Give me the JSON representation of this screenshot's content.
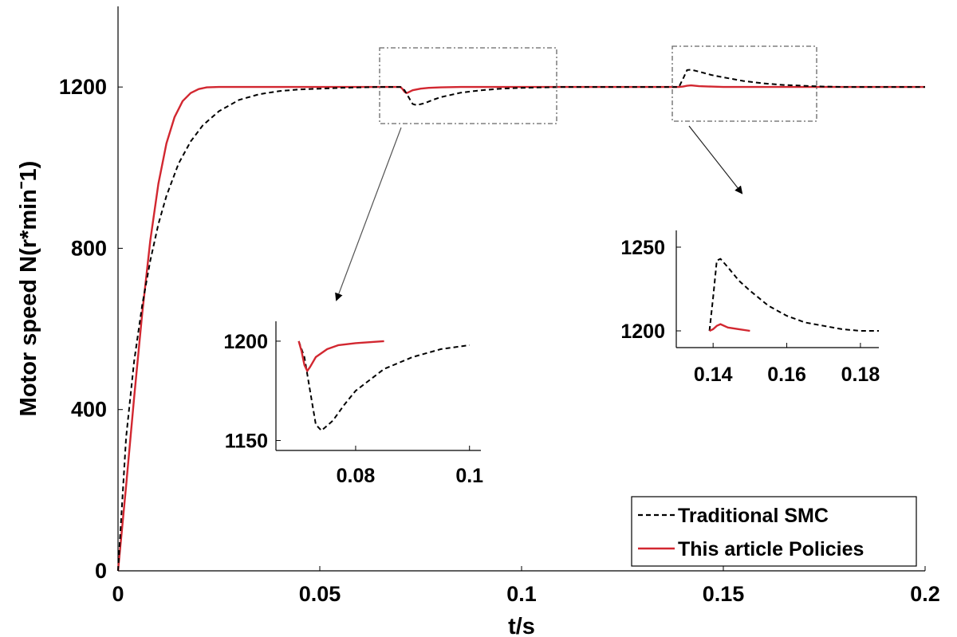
{
  "chart_data": [
    {
      "type": "line",
      "xlabel": "t/s",
      "ylabel": "Motor speed N(r*minˉ1)",
      "xlim": [
        0,
        0.2
      ],
      "ylim": [
        0,
        1400
      ],
      "xticks": [
        "0",
        "0.05",
        "0.1",
        "0.15",
        "0.2"
      ],
      "yticks": [
        "0",
        "400",
        "800",
        "1200"
      ],
      "grid": false,
      "legend": {
        "position": "bottom-right"
      },
      "series": [
        {
          "name": "Traditional SMC",
          "style": "dashed",
          "color": "#000000",
          "x": [
            0,
            0.002,
            0.004,
            0.006,
            0.008,
            0.01,
            0.012,
            0.015,
            0.018,
            0.021,
            0.025,
            0.03,
            0.035,
            0.04,
            0.045,
            0.05,
            0.055,
            0.06,
            0.065,
            0.07,
            0.071,
            0.072,
            0.073,
            0.074,
            0.076,
            0.078,
            0.08,
            0.085,
            0.09,
            0.095,
            0.1,
            0.11,
            0.139,
            0.14,
            0.141,
            0.142,
            0.144,
            0.147,
            0.15,
            0.155,
            0.16,
            0.165,
            0.17,
            0.175,
            0.18,
            0.185,
            0.2
          ],
          "y": [
            0,
            330,
            520,
            660,
            770,
            860,
            930,
            1010,
            1065,
            1105,
            1140,
            1168,
            1182,
            1190,
            1194,
            1196,
            1198,
            1199,
            1200,
            1200,
            1192,
            1175,
            1158,
            1155,
            1160,
            1168,
            1175,
            1186,
            1192,
            1196,
            1198,
            1200,
            1200,
            1220,
            1242,
            1243,
            1238,
            1230,
            1224,
            1215,
            1209,
            1205,
            1203,
            1201,
            1200,
            1200,
            1200
          ]
        },
        {
          "name": "This article Policies",
          "style": "solid",
          "color": "#d22730",
          "x": [
            0,
            0.002,
            0.004,
            0.006,
            0.008,
            0.01,
            0.012,
            0.014,
            0.016,
            0.018,
            0.02,
            0.022,
            0.025,
            0.03,
            0.07,
            0.0705,
            0.071,
            0.0715,
            0.072,
            0.073,
            0.075,
            0.077,
            0.08,
            0.085,
            0.139,
            0.14,
            0.141,
            0.142,
            0.144,
            0.147,
            0.15,
            0.2
          ],
          "y": [
            0,
            210,
            430,
            640,
            820,
            960,
            1060,
            1125,
            1165,
            1185,
            1195,
            1199,
            1200,
            1200,
            1200,
            1195,
            1188,
            1185,
            1187,
            1192,
            1196,
            1198,
            1199,
            1200,
            1200,
            1201,
            1203,
            1204,
            1202,
            1201,
            1200,
            1200
          ]
        }
      ]
    },
    {
      "type": "line",
      "inset": "zoom on first disturbance",
      "xlim": [
        0.066,
        0.102
      ],
      "ylim": [
        1145,
        1210
      ],
      "xticks": [
        "0.08",
        "0.1"
      ],
      "yticks": [
        "1150",
        "1200"
      ]
    },
    {
      "type": "line",
      "inset": "zoom on second disturbance",
      "xlim": [
        0.13,
        0.185
      ],
      "ylim": [
        1190,
        1260
      ],
      "xticks": [
        "0.14",
        "0.16",
        "0.18"
      ],
      "yticks": [
        "1200",
        "1250"
      ]
    }
  ]
}
